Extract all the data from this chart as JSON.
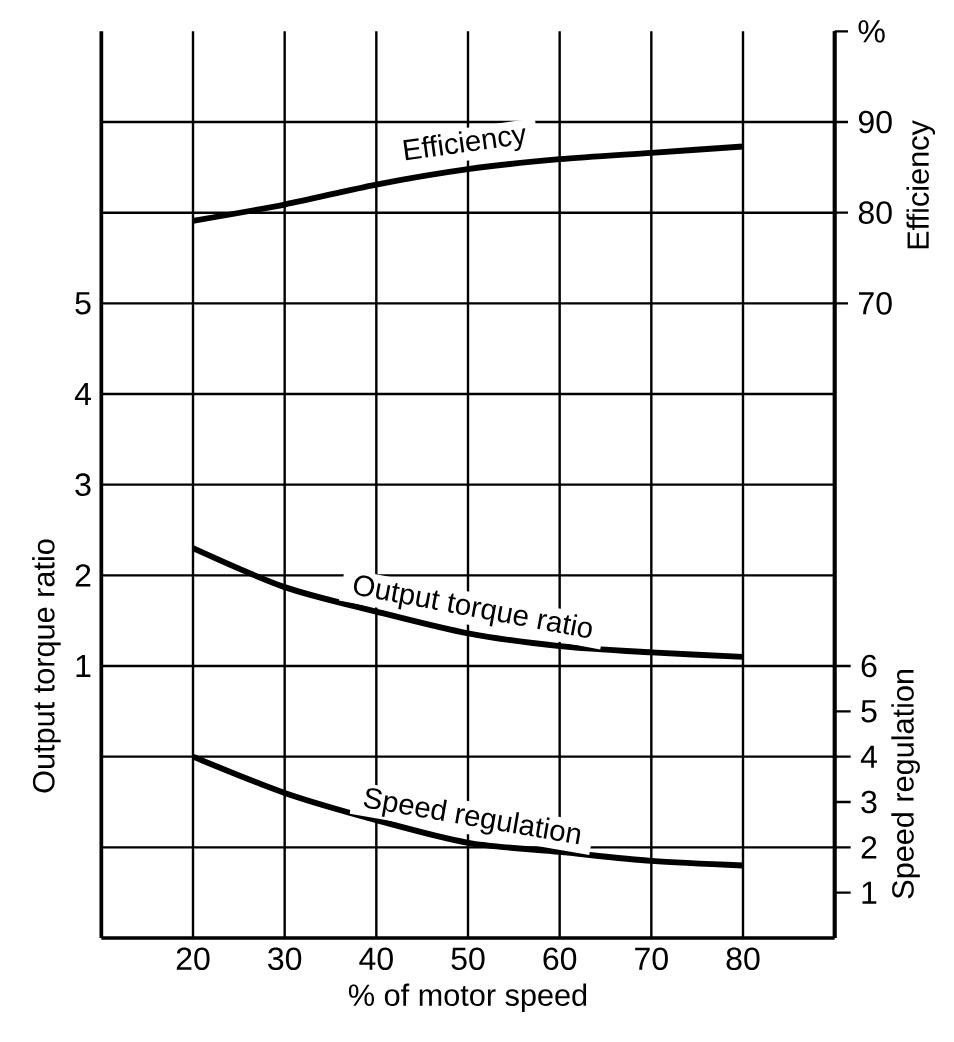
{
  "chart_data": {
    "type": "line",
    "xlabel": "% of motor speed",
    "ylabel": "Output torque ratio",
    "y2label": "Efficiency",
    "y3label": "Speed regulation",
    "x": [
      20,
      30,
      40,
      50,
      60,
      70,
      80
    ],
    "xlim": [
      10,
      90
    ],
    "xticks": [
      20,
      30,
      40,
      50,
      60,
      70,
      80
    ],
    "ylim": [
      -2,
      8
    ],
    "yticks": [
      {
        "value": -1,
        "label": null
      },
      {
        "value": 0,
        "label": null
      },
      1,
      2,
      3,
      4,
      5,
      {
        "value": 6,
        "label": null
      },
      {
        "value": 7,
        "label": null
      }
    ],
    "y2lim": [
      0,
      100
    ],
    "y2ticks": [
      70,
      80,
      90,
      {
        "value": 100,
        "label": "%"
      }
    ],
    "y3lim": [
      0,
      20
    ],
    "y3ticks": [
      1,
      2,
      3,
      4,
      5,
      6
    ],
    "grid": true,
    "series": [
      {
        "name": "Output torque ratio",
        "color": "#000000",
        "values": [
          2.3,
          1.87,
          1.6,
          1.36,
          1.22,
          1.15,
          1.1
        ]
      },
      {
        "name": "Efficiency",
        "color": "#000000",
        "axis": "y2",
        "values": [
          79.1,
          80.9,
          83.1,
          84.8,
          85.9,
          86.6,
          87.3
        ]
      },
      {
        "name": "Speed regulation",
        "color": "#000000",
        "axis": "y3",
        "values": [
          4.0,
          3.2,
          2.6,
          2.1,
          1.9,
          1.7,
          1.6
        ]
      }
    ]
  }
}
